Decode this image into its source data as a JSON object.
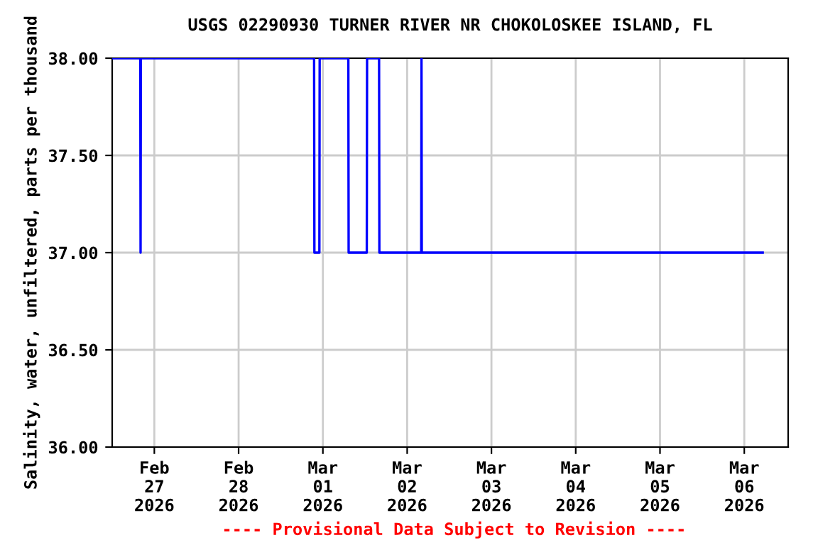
{
  "chart_data": {
    "type": "line",
    "title": "USGS 02290930 TURNER RIVER NR CHOKOLOSKEE ISLAND, FL",
    "ylabel": "Salinity, water, unfiltered, parts per thousand",
    "series": [
      {
        "color": "#0000ff",
        "x": [
          "2026-02-26T12:15",
          "2026-02-26T20:00",
          "2026-02-26T20:05",
          "2026-02-26T20:10",
          "2026-02-28T21:30",
          "2026-02-28T21:35",
          "2026-02-28T23:00",
          "2026-02-28T23:05",
          "2026-03-01T07:15",
          "2026-03-01T07:20",
          "2026-03-01T12:30",
          "2026-03-01T12:35",
          "2026-03-01T16:00",
          "2026-03-01T16:05",
          "2026-03-02T04:00",
          "2026-03-02T04:05",
          "2026-03-02T04:10",
          "2026-03-06T05:15"
        ],
        "values": [
          38,
          38,
          37,
          38,
          38,
          37,
          37,
          38,
          38,
          37,
          37,
          38,
          38,
          37,
          37,
          38,
          37,
          37
        ]
      }
    ],
    "xlim": [
      "2026-02-26T12:00",
      "2026-03-06T12:30"
    ],
    "xticks": [
      {
        "value": "2026-02-27",
        "label": "Feb\n27\n2026"
      },
      {
        "value": "2026-02-28",
        "label": "Feb\n28\n2026"
      },
      {
        "value": "2026-03-01",
        "label": "Mar\n01\n2026"
      },
      {
        "value": "2026-03-02",
        "label": "Mar\n02\n2026"
      },
      {
        "value": "2026-03-03",
        "label": "Mar\n03\n2026"
      },
      {
        "value": "2026-03-04",
        "label": "Mar\n04\n2026"
      },
      {
        "value": "2026-03-05",
        "label": "Mar\n05\n2026"
      },
      {
        "value": "2026-03-06",
        "label": "Mar\n06\n2026"
      }
    ],
    "ylim": [
      36,
      38
    ],
    "yticks": [
      {
        "value": 36,
        "label": "36.00"
      },
      {
        "value": 36.5,
        "label": "36.50"
      },
      {
        "value": 37,
        "label": "37.00"
      },
      {
        "value": 37.5,
        "label": "37.50"
      },
      {
        "value": 38,
        "label": "38.00"
      }
    ],
    "grid": true,
    "annotations": [
      "---- Provisional Data Subject to Revision ----"
    ]
  }
}
